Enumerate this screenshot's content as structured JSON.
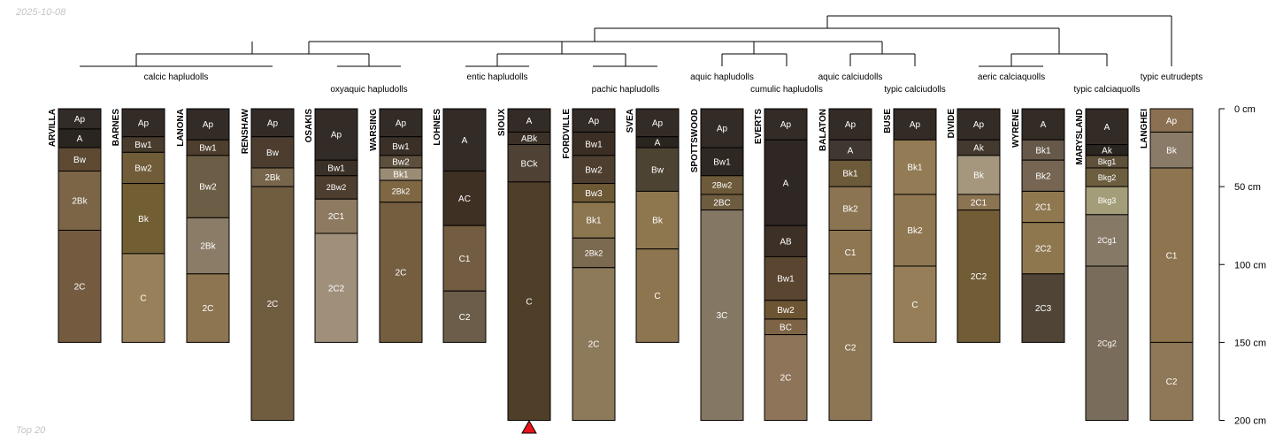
{
  "header": {
    "date_stamp": "2025-10-08"
  },
  "footer": {
    "caption": "Top 20"
  },
  "chart_data": {
    "type": "soil-profile-sketch",
    "depth_axis": {
      "range": [
        0,
        200
      ],
      "unit": "cm",
      "ticks": [
        0,
        50,
        100,
        150,
        200
      ],
      "tick_labels": [
        "0 cm",
        "50 cm",
        "100 cm",
        "150 cm",
        "200 cm"
      ]
    },
    "highlight_marker": {
      "profile": "SIOUX",
      "symbol": "red triangle",
      "color": "#e8141b"
    },
    "taxa": [
      "calcic hapludolls",
      "oxyaquic hapludolls",
      "entic hapludolls",
      "pachic hapludolls",
      "aquic hapludolls",
      "cumulic hapludolls",
      "aquic calciudolls",
      "typic calciudolls",
      "aeric calciaquolls",
      "typic calciaquolls",
      "typic eutrudepts"
    ],
    "profiles": [
      {
        "name": "ARVILLA",
        "horizons": [
          {
            "name": "Ap",
            "top": 0,
            "bottom": 13,
            "color": "#332b26"
          },
          {
            "name": "A",
            "top": 13,
            "bottom": 25,
            "color": "#2b2520"
          },
          {
            "name": "Bw",
            "top": 25,
            "bottom": 40,
            "color": "#5e4a33"
          },
          {
            "name": "2Bk",
            "top": 40,
            "bottom": 78,
            "color": "#7c6447"
          },
          {
            "name": "2C",
            "top": 78,
            "bottom": 150,
            "color": "#745b40"
          }
        ]
      },
      {
        "name": "BARNES",
        "horizons": [
          {
            "name": "Ap",
            "top": 0,
            "bottom": 18,
            "color": "#332b26"
          },
          {
            "name": "Bw1",
            "top": 18,
            "bottom": 28,
            "color": "#4a3c2d"
          },
          {
            "name": "Bw2",
            "top": 28,
            "bottom": 48,
            "color": "#705c38"
          },
          {
            "name": "Bk",
            "top": 48,
            "bottom": 93,
            "color": "#715e33"
          },
          {
            "name": "C",
            "top": 93,
            "bottom": 150,
            "color": "#98815a"
          }
        ]
      },
      {
        "name": "LANONA",
        "horizons": [
          {
            "name": "Ap",
            "top": 0,
            "bottom": 20,
            "color": "#332b26"
          },
          {
            "name": "Bw1",
            "top": 20,
            "bottom": 30,
            "color": "#4d3e2e"
          },
          {
            "name": "Bw2",
            "top": 30,
            "bottom": 70,
            "color": "#6c5d46"
          },
          {
            "name": "2Bk",
            "top": 70,
            "bottom": 106,
            "color": "#8b7c68"
          },
          {
            "name": "2C",
            "top": 106,
            "bottom": 150,
            "color": "#8c7550"
          }
        ]
      },
      {
        "name": "RENSHAW",
        "horizons": [
          {
            "name": "Ap",
            "top": 0,
            "bottom": 18,
            "color": "#332b26"
          },
          {
            "name": "Bw",
            "top": 18,
            "bottom": 38,
            "color": "#4c3d2e"
          },
          {
            "name": "2Bk",
            "top": 38,
            "bottom": 50,
            "color": "#77654c"
          },
          {
            "name": "2C",
            "top": 50,
            "bottom": 200,
            "color": "#705c3f"
          }
        ]
      },
      {
        "name": "OSAKIS",
        "horizons": [
          {
            "name": "Ap",
            "top": 0,
            "bottom": 33,
            "color": "#332b26"
          },
          {
            "name": "Bw1",
            "top": 33,
            "bottom": 43,
            "color": "#3b3128"
          },
          {
            "name": "2Bw2",
            "top": 43,
            "bottom": 58,
            "color": "#4d3e2f"
          },
          {
            "name": "2C1",
            "top": 58,
            "bottom": 80,
            "color": "#8e7a60"
          },
          {
            "name": "2C2",
            "top": 80,
            "bottom": 150,
            "color": "#a0907b"
          }
        ]
      },
      {
        "name": "WARSING",
        "horizons": [
          {
            "name": "Ap",
            "top": 0,
            "bottom": 18,
            "color": "#332b26"
          },
          {
            "name": "Bw1",
            "top": 18,
            "bottom": 30,
            "color": "#3a3027"
          },
          {
            "name": "Bw2",
            "top": 30,
            "bottom": 38,
            "color": "#5e4f3d"
          },
          {
            "name": "Bk1",
            "top": 38,
            "bottom": 46,
            "color": "#9a8b74"
          },
          {
            "name": "2Bk2",
            "top": 46,
            "bottom": 60,
            "color": "#7f6744"
          },
          {
            "name": "2C",
            "top": 60,
            "bottom": 150,
            "color": "#755e3f"
          }
        ]
      },
      {
        "name": "LOHNES",
        "horizons": [
          {
            "name": "A",
            "top": 0,
            "bottom": 40,
            "color": "#332b26"
          },
          {
            "name": "AC",
            "top": 40,
            "bottom": 75,
            "color": "#3f3024"
          },
          {
            "name": "C1",
            "top": 75,
            "bottom": 117,
            "color": "#735d42"
          },
          {
            "name": "C2",
            "top": 117,
            "bottom": 150,
            "color": "#6b5d4a"
          }
        ]
      },
      {
        "name": "SIOUX",
        "horizons": [
          {
            "name": "A",
            "top": 0,
            "bottom": 15,
            "color": "#332b26"
          },
          {
            "name": "ABk",
            "top": 15,
            "bottom": 23,
            "color": "#3b3128"
          },
          {
            "name": "BCk",
            "top": 23,
            "bottom": 47,
            "color": "#4f4234"
          },
          {
            "name": "C",
            "top": 47,
            "bottom": 200,
            "color": "#4f3f28"
          }
        ]
      },
      {
        "name": "FORDVILLE",
        "horizons": [
          {
            "name": "Ap",
            "top": 0,
            "bottom": 15,
            "color": "#332b26"
          },
          {
            "name": "Bw1",
            "top": 15,
            "bottom": 30,
            "color": "#3b2f25"
          },
          {
            "name": "Bw2",
            "top": 30,
            "bottom": 48,
            "color": "#4d3e2f"
          },
          {
            "name": "Bw3",
            "top": 48,
            "bottom": 60,
            "color": "#6e5937"
          },
          {
            "name": "Bk1",
            "top": 60,
            "bottom": 83,
            "color": "#8c7650"
          },
          {
            "name": "2Bk2",
            "top": 83,
            "bottom": 102,
            "color": "#7c6a50"
          },
          {
            "name": "2C",
            "top": 102,
            "bottom": 200,
            "color": "#8d7a5b"
          }
        ]
      },
      {
        "name": "SVEA",
        "horizons": [
          {
            "name": "Ap",
            "top": 0,
            "bottom": 18,
            "color": "#332b26"
          },
          {
            "name": "A",
            "top": 18,
            "bottom": 25,
            "color": "#2b2520"
          },
          {
            "name": "Bw",
            "top": 25,
            "bottom": 53,
            "color": "#4d4333"
          },
          {
            "name": "Bk",
            "top": 53,
            "bottom": 90,
            "color": "#8e774f"
          },
          {
            "name": "C",
            "top": 90,
            "bottom": 150,
            "color": "#8d7550"
          }
        ]
      },
      {
        "name": "SPOTTSWOOD",
        "horizons": [
          {
            "name": "Ap",
            "top": 0,
            "bottom": 25,
            "color": "#332b26"
          },
          {
            "name": "Bw1",
            "top": 25,
            "bottom": 43,
            "color": "#2f2822"
          },
          {
            "name": "2Bw2",
            "top": 43,
            "bottom": 55,
            "color": "#6d5a3a"
          },
          {
            "name": "2BC",
            "top": 55,
            "bottom": 65,
            "color": "#6e5c40"
          },
          {
            "name": "3C",
            "top": 65,
            "bottom": 200,
            "color": "#847763"
          }
        ]
      },
      {
        "name": "EVERTS",
        "horizons": [
          {
            "name": "Ap",
            "top": 0,
            "bottom": 20,
            "color": "#332b26"
          },
          {
            "name": "A",
            "top": 20,
            "bottom": 75,
            "color": "#2e2723"
          },
          {
            "name": "AB",
            "top": 75,
            "bottom": 95,
            "color": "#3c3027"
          },
          {
            "name": "Bw1",
            "top": 95,
            "bottom": 123,
            "color": "#5a4530"
          },
          {
            "name": "Bw2",
            "top": 123,
            "bottom": 135,
            "color": "#6d5533"
          },
          {
            "name": "BC",
            "top": 135,
            "bottom": 145,
            "color": "#7e6446"
          },
          {
            "name": "2C",
            "top": 145,
            "bottom": 200,
            "color": "#8e7458"
          }
        ]
      },
      {
        "name": "BALATON",
        "horizons": [
          {
            "name": "Ap",
            "top": 0,
            "bottom": 20,
            "color": "#332b26"
          },
          {
            "name": "A",
            "top": 20,
            "bottom": 33,
            "color": "#3f3730"
          },
          {
            "name": "Bk1",
            "top": 33,
            "bottom": 50,
            "color": "#6d5a3a"
          },
          {
            "name": "Bk2",
            "top": 50,
            "bottom": 78,
            "color": "#8b7451"
          },
          {
            "name": "C1",
            "top": 78,
            "bottom": 106,
            "color": "#8d7650"
          },
          {
            "name": "C2",
            "top": 106,
            "bottom": 200,
            "color": "#8d7654"
          }
        ]
      },
      {
        "name": "BUSE",
        "horizons": [
          {
            "name": "Ap",
            "top": 0,
            "bottom": 20,
            "color": "#332b26"
          },
          {
            "name": "Bk1",
            "top": 20,
            "bottom": 55,
            "color": "#937b55"
          },
          {
            "name": "Bk2",
            "top": 55,
            "bottom": 101,
            "color": "#8e7751"
          },
          {
            "name": "C",
            "top": 101,
            "bottom": 150,
            "color": "#967f58"
          }
        ]
      },
      {
        "name": "DIVIDE",
        "horizons": [
          {
            "name": "Ap",
            "top": 0,
            "bottom": 20,
            "color": "#332b26"
          },
          {
            "name": "Ak",
            "top": 20,
            "bottom": 30,
            "color": "#43392e"
          },
          {
            "name": "Bk",
            "top": 30,
            "bottom": 55,
            "color": "#a4977e"
          },
          {
            "name": "2C1",
            "top": 55,
            "bottom": 65,
            "color": "#8a7452"
          },
          {
            "name": "2C2",
            "top": 65,
            "bottom": 150,
            "color": "#715c35"
          }
        ]
      },
      {
        "name": "WYRENE",
        "horizons": [
          {
            "name": "A",
            "top": 0,
            "bottom": 20,
            "color": "#332b26"
          },
          {
            "name": "Bk1",
            "top": 20,
            "bottom": 33,
            "color": "#67594a"
          },
          {
            "name": "Bk2",
            "top": 33,
            "bottom": 53,
            "color": "#766552"
          },
          {
            "name": "2C1",
            "top": 53,
            "bottom": 73,
            "color": "#8f7850"
          },
          {
            "name": "2C2",
            "top": 73,
            "bottom": 106,
            "color": "#8e774f"
          },
          {
            "name": "2C3",
            "top": 106,
            "bottom": 150,
            "color": "#4f4435"
          }
        ]
      },
      {
        "name": "MARYSLAND",
        "horizons": [
          {
            "name": "A",
            "top": 0,
            "bottom": 23,
            "color": "#332b26"
          },
          {
            "name": "Ak",
            "top": 23,
            "bottom": 30,
            "color": "#2b2520"
          },
          {
            "name": "Bkg1",
            "top": 30,
            "bottom": 38,
            "color": "#5e5039"
          },
          {
            "name": "Bkg2",
            "top": 38,
            "bottom": 50,
            "color": "#6d5e40"
          },
          {
            "name": "Bkg3",
            "top": 50,
            "bottom": 68,
            "color": "#a39e79"
          },
          {
            "name": "2Cg1",
            "top": 68,
            "bottom": 101,
            "color": "#867a67"
          },
          {
            "name": "2Cg2",
            "top": 101,
            "bottom": 200,
            "color": "#7a6c5a"
          }
        ]
      },
      {
        "name": "LANGHEI",
        "horizons": [
          {
            "name": "Ap",
            "top": 0,
            "bottom": 15,
            "color": "#8b7152"
          },
          {
            "name": "Bk",
            "top": 15,
            "bottom": 38,
            "color": "#8a7b68"
          },
          {
            "name": "C1",
            "top": 38,
            "bottom": 150,
            "color": "#8e7550"
          },
          {
            "name": "C2",
            "top": 150,
            "bottom": 200,
            "color": "#8f7858"
          }
        ]
      }
    ]
  }
}
